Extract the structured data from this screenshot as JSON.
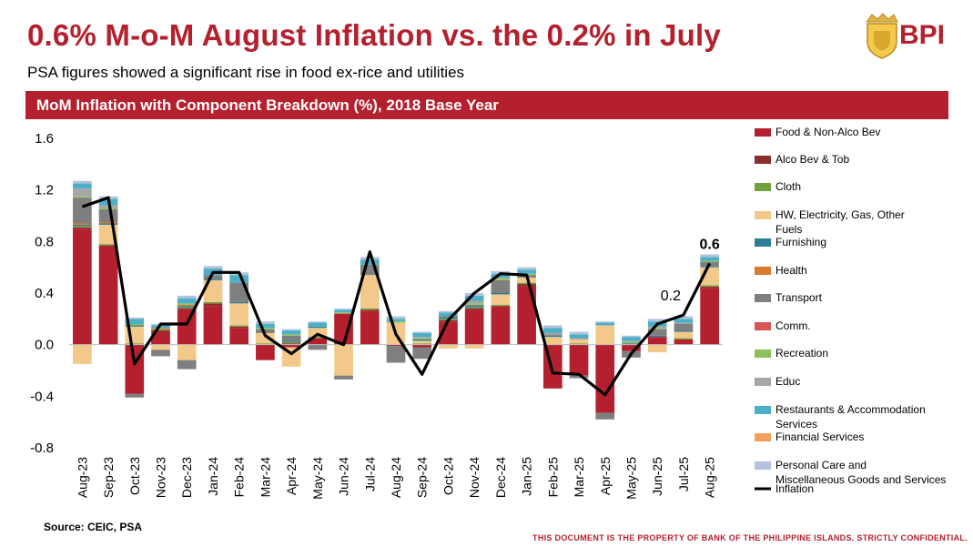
{
  "header": {
    "title": "0.6% M-o-M August Inflation vs. the 0.2% in July",
    "subtitle": "PSA figures showed a significant rise in food ex-rice and utilities",
    "logo_text": "BPI"
  },
  "banner": {
    "text": "MoM Inflation with Component Breakdown (%), 2018 Base Year"
  },
  "footer": {
    "source": "Source: CEIC, PSA",
    "confidential": "THIS DOCUMENT IS THE PROPERTY OF BANK OF THE PHILIPPINE ISLANDS.  STRICTLY CONFIDENTIAL."
  },
  "colors": {
    "brand": "#B5202E",
    "banner": "#B5202E",
    "inflation_line": "#000000"
  },
  "chart_data": {
    "type": "bar",
    "stacked": true,
    "title": "MoM Inflation with Component Breakdown (%), 2018 Base Year",
    "xlabel": "",
    "ylabel": "",
    "ylim": [
      -0.8,
      1.6
    ],
    "yticks": [
      "1.6",
      "1.2",
      "0.8",
      "0.4",
      "0.0",
      "-0.4",
      "-0.8"
    ],
    "ytick_values": [
      1.6,
      1.2,
      0.8,
      0.4,
      0.0,
      -0.4,
      -0.8
    ],
    "categories": [
      "Aug-23",
      "Sep-23",
      "Oct-23",
      "Nov-23",
      "Dec-23",
      "Jan-24",
      "Feb-24",
      "Mar-24",
      "Apr-24",
      "May-24",
      "Jun-24",
      "Jul-24",
      "Aug-24",
      "Sep-24",
      "Oct-24",
      "Nov-24",
      "Dec-24",
      "Jan-25",
      "Feb-25",
      "Mar-25",
      "Apr-25",
      "May-25",
      "Jun-25",
      "Jul-25",
      "Aug-25"
    ],
    "series": [
      {
        "name": "Food & Non-Alco Bev",
        "color": "#B5202E",
        "values": [
          0.9,
          0.76,
          -0.38,
          0.1,
          0.27,
          0.3,
          0.13,
          -0.12,
          -0.02,
          0.05,
          0.24,
          0.26,
          -0.01,
          -0.02,
          0.18,
          0.27,
          0.3,
          0.45,
          -0.34,
          -0.24,
          -0.53,
          -0.05,
          0.06,
          0.04,
          0.44
        ]
      },
      {
        "name": "Alco Bev & Tob",
        "color": "#8E2D2D",
        "values": [
          0.01,
          0.01,
          0,
          0.01,
          0.01,
          0.02,
          0.01,
          0,
          0.01,
          0,
          0,
          0.01,
          0,
          0,
          0.01,
          0.01,
          0,
          0.02,
          0,
          0,
          0,
          0,
          0,
          0,
          0.01
        ]
      },
      {
        "name": "Cloth",
        "color": "#70A040",
        "values": [
          0.01,
          0.01,
          0.01,
          0.01,
          0.01,
          0.01,
          0.01,
          0.01,
          0.01,
          0.01,
          0,
          0.01,
          0,
          0.01,
          0.01,
          0.01,
          0.01,
          0.01,
          0,
          0.01,
          0,
          0,
          0,
          0.01,
          0.01
        ]
      },
      {
        "name": "HW, Electricity, Gas, Other Fuels",
        "color": "#F2C98A",
        "values": [
          -0.15,
          0.15,
          0.13,
          -0.04,
          -0.12,
          0.17,
          0.17,
          0.08,
          -0.15,
          0.07,
          -0.24,
          0.26,
          0.17,
          0.02,
          -0.03,
          -0.03,
          0.08,
          0.04,
          0.06,
          0.03,
          0.15,
          0,
          -0.06,
          0.05,
          0.14
        ]
      },
      {
        "name": "Furnishing",
        "color": "#2E7B9A",
        "values": [
          0.01,
          0.01,
          0.01,
          0,
          0.01,
          0.01,
          0.01,
          0,
          0.01,
          0.01,
          0,
          0,
          0,
          0.01,
          0.01,
          0.01,
          0.01,
          0,
          0.01,
          0,
          0,
          0.01,
          0.01,
          0.01,
          0.01
        ]
      },
      {
        "name": "Health",
        "color": "#D87A30",
        "values": [
          0.01,
          0.01,
          0,
          0.01,
          0.01,
          0,
          0,
          0,
          0,
          0,
          0,
          0,
          0,
          0,
          0,
          0,
          0,
          0,
          0,
          0,
          0,
          0,
          0,
          0,
          0
        ]
      },
      {
        "name": "Transport",
        "color": "#7F7F7F",
        "values": [
          0.2,
          0.1,
          -0.03,
          -0.05,
          -0.07,
          0.03,
          0.15,
          0.03,
          0.04,
          -0.04,
          -0.03,
          0.08,
          -0.13,
          -0.09,
          0.01,
          0.01,
          0.1,
          0.02,
          0.01,
          -0.02,
          -0.05,
          -0.05,
          0.05,
          0.05,
          0.03
        ]
      },
      {
        "name": "Comm.",
        "color": "#D95555",
        "values": [
          0,
          0,
          0,
          0,
          0,
          0,
          0,
          0,
          0,
          0,
          0,
          0,
          0,
          0,
          0,
          0,
          0,
          0,
          0,
          0,
          0,
          0,
          0,
          0,
          0
        ]
      },
      {
        "name": "Recreation",
        "color": "#8DC05A",
        "values": [
          0.01,
          0.01,
          0.01,
          0,
          0.01,
          0,
          0,
          0.01,
          0.01,
          0,
          0.01,
          0,
          0.01,
          0.01,
          0,
          0.01,
          0.01,
          0.01,
          0,
          0,
          0,
          0.01,
          0.01,
          0,
          0.01
        ]
      },
      {
        "name": "Educ",
        "color": "#A6A6A6",
        "values": [
          0.06,
          0.02,
          0,
          0,
          0,
          0,
          0,
          0,
          0,
          0,
          0,
          0,
          0,
          0.01,
          0,
          0.02,
          0.01,
          0,
          0.01,
          0.01,
          0,
          0.01,
          0.01,
          0.01,
          0
        ]
      },
      {
        "name": "Restaurants & Accommodation Services",
        "color": "#4BAFC8",
        "values": [
          0.04,
          0.05,
          0.04,
          0.02,
          0.04,
          0.05,
          0.06,
          0.03,
          0.03,
          0.03,
          0.02,
          0.04,
          0.02,
          0.03,
          0.03,
          0.04,
          0.03,
          0.03,
          0.04,
          0.03,
          0.02,
          0.03,
          0.04,
          0.03,
          0.03
        ]
      },
      {
        "name": "Financial Services",
        "color": "#F5A05A",
        "values": [
          0,
          0,
          0,
          0,
          0,
          0,
          0,
          0,
          0,
          0,
          0,
          0,
          0,
          0,
          0,
          0,
          0,
          0,
          0,
          0,
          0,
          0,
          0,
          0,
          0
        ]
      },
      {
        "name": "Personal Care and Miscellaneous Goods and Services",
        "color": "#B4C3DC",
        "values": [
          0.02,
          0.02,
          0.01,
          0.01,
          0.02,
          0.02,
          0.02,
          0.02,
          0.01,
          0.01,
          0.01,
          0.02,
          0.02,
          0.01,
          0.01,
          0.02,
          0.02,
          0.02,
          0.02,
          0.02,
          0.01,
          0.01,
          0.02,
          0.02,
          0.02
        ]
      }
    ],
    "line": {
      "name": "Inflation",
      "color": "#000000",
      "values": [
        1.07,
        1.14,
        -0.15,
        0.16,
        0.16,
        0.56,
        0.56,
        0.07,
        -0.07,
        0.08,
        0.0,
        0.72,
        0.08,
        -0.23,
        0.19,
        0.4,
        0.55,
        0.54,
        -0.22,
        -0.23,
        -0.39,
        -0.07,
        0.16,
        0.23,
        0.63
      ]
    },
    "annotations": [
      {
        "category": "Jul-25",
        "value": 0.2,
        "text": "0.2",
        "bold": false
      },
      {
        "category": "Aug-25",
        "value": 0.6,
        "text": "0.6",
        "bold": true
      }
    ],
    "legend": {
      "placement": "right"
    }
  }
}
